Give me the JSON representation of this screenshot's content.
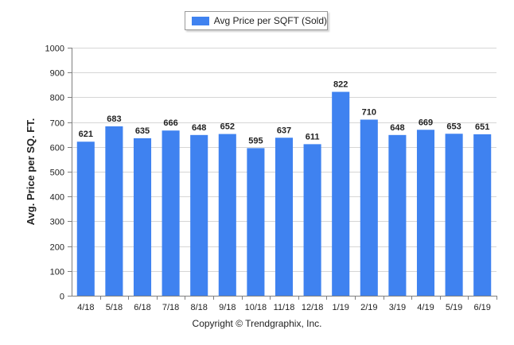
{
  "legend": {
    "label": "Avg Price per SQFT (Sold)"
  },
  "footer": {
    "copyright": "Copyright © Trendgraphix, Inc."
  },
  "colors": {
    "bar": "#3f82f0",
    "grid": "#d6d6d6",
    "axis": "#7f7f7f",
    "text": "#222222"
  },
  "chart_data": {
    "type": "bar",
    "ylabel": "Avg. Price per SQ. FT.",
    "xlabel": "",
    "ylim": [
      0,
      1000
    ],
    "yticks": [
      0,
      100,
      200,
      300,
      400,
      500,
      600,
      700,
      800,
      900,
      1000
    ],
    "grid": true,
    "legend_position": "top-center",
    "categories": [
      "4/18",
      "5/18",
      "6/18",
      "7/18",
      "8/18",
      "9/18",
      "10/18",
      "11/18",
      "12/18",
      "1/19",
      "2/19",
      "3/19",
      "4/19",
      "5/19",
      "6/19"
    ],
    "series": [
      {
        "name": "Avg Price per SQFT (Sold)",
        "values": [
          621,
          683,
          635,
          666,
          648,
          652,
          595,
          637,
          611,
          822,
          710,
          648,
          669,
          653,
          651
        ]
      }
    ]
  }
}
